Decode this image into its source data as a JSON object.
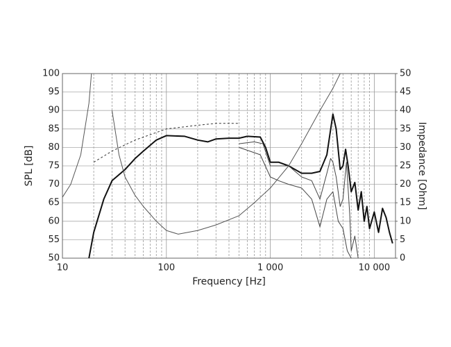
{
  "chart_data": {
    "type": "line",
    "xlabel": "Frequency [Hz]",
    "ylabel": "SPL [dB]",
    "y2label": "Impedance [Ohm]",
    "xscale": "log",
    "xlim": [
      10,
      16000
    ],
    "xticks": [
      10,
      100,
      {
        "value": 1000,
        "label": "1 000"
      },
      {
        "value": 10000,
        "label": "10 000"
      }
    ],
    "xminorticks": [
      20,
      30,
      40,
      50,
      60,
      70,
      80,
      90,
      200,
      300,
      400,
      500,
      600,
      700,
      800,
      900,
      2000,
      3000,
      4000,
      5000,
      6000,
      7000,
      8000,
      9000
    ],
    "ylim": [
      50,
      100
    ],
    "yticks": [
      50,
      55,
      60,
      65,
      70,
      75,
      80,
      85,
      90,
      95,
      100
    ],
    "y2lim": [
      0,
      50
    ],
    "y2ticks": [
      0,
      5,
      10,
      15,
      20,
      25,
      30,
      35,
      40,
      45,
      50
    ],
    "grid": true,
    "series": [
      {
        "color": "#111111",
        "width": 2,
        "x": [
          18,
          20,
          25,
          30,
          40,
          50,
          60,
          80,
          100,
          150,
          200,
          250,
          300,
          400,
          500,
          600,
          800,
          900,
          1000,
          1200,
          1500,
          2000,
          2500,
          3000,
          3500,
          4000,
          4300,
          4700,
          5000,
          5300,
          5600,
          6000,
          6500,
          7000,
          7500,
          8000,
          8500,
          9000,
          10000,
          11000,
          12000,
          13000,
          14000,
          15000
        ],
        "values": [
          50,
          57,
          66,
          71,
          74,
          77,
          79,
          82,
          83.2,
          83,
          82,
          81.5,
          82.3,
          82.5,
          82.5,
          83,
          82.8,
          80,
          76,
          76,
          75,
          73,
          73,
          73.5,
          78,
          89,
          85,
          74,
          75,
          79.5,
          75,
          68,
          70.5,
          63,
          68,
          60,
          64,
          58,
          62.5,
          57,
          63.5,
          61,
          57,
          54
        ]
      },
      {
        "color": "#444444",
        "width": 1,
        "x": [
          500,
          700,
          850,
          1000,
          1500,
          2000,
          2500,
          3000,
          3500,
          3800,
          4000,
          4300,
          4700,
          5000,
          5400,
          5800,
          6000,
          6500,
          7000
        ],
        "values": [
          81,
          81.5,
          81,
          75,
          75,
          72,
          71,
          66,
          73,
          77,
          76,
          72,
          64,
          66,
          76,
          62,
          52,
          56,
          50
        ]
      },
      {
        "color": "#444444",
        "width": 1,
        "x": [
          500,
          800,
          1000,
          1200,
          1500,
          2000,
          2500,
          3000,
          3500,
          4000,
          4500,
          5000,
          5500,
          6000
        ],
        "values": [
          80,
          78,
          72,
          71,
          70,
          69,
          66,
          58.5,
          66,
          68,
          60,
          58,
          52,
          50
        ]
      },
      {
        "color": "#555555",
        "width": 1,
        "axis": "y2",
        "x": [
          10,
          12,
          15,
          18,
          19,
          27,
          30,
          35,
          40,
          50,
          60,
          80,
          100,
          130,
          200,
          300,
          500,
          700,
          1000,
          1500,
          2000,
          3000,
          4000,
          4700
        ],
        "values": [
          16.5,
          20,
          28,
          42,
          50,
          null,
          40,
          28,
          22,
          17,
          14,
          10,
          7.5,
          6.5,
          7.5,
          9,
          11.5,
          15,
          19,
          25,
          31,
          40,
          46,
          50
        ]
      },
      {
        "color": "#333333",
        "width": 1,
        "dash": "3,3",
        "x": [
          20,
          30,
          50,
          100,
          200,
          300,
          500
        ],
        "values": [
          76,
          79,
          82,
          85,
          86,
          86.5,
          86.5
        ]
      }
    ]
  }
}
